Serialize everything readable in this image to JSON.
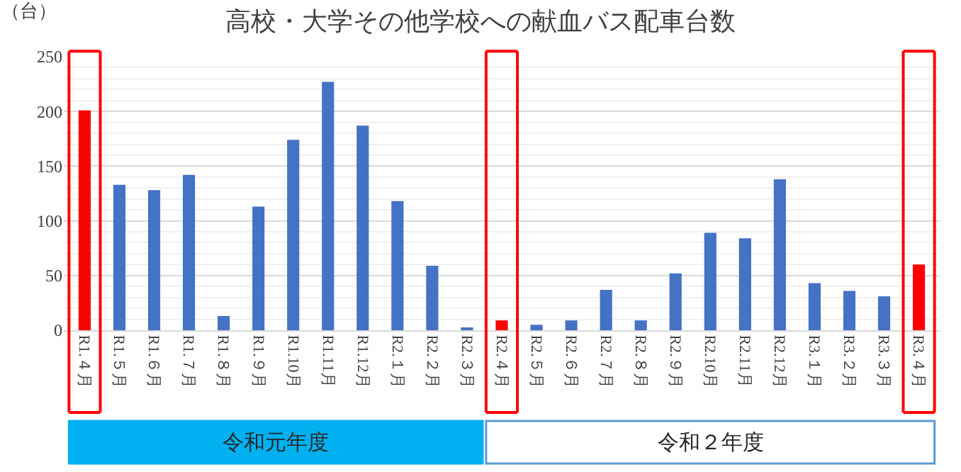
{
  "chart_data": {
    "type": "bar",
    "title": "高校・大学その他学校への献血バス配車台数",
    "ylabel": "（台）",
    "categories": [
      "R1.４月",
      "R1.５月",
      "R1.６月",
      "R1.７月",
      "R1.８月",
      "R1.９月",
      "R1.10月",
      "R1.11月",
      "R1.12月",
      "R2.１月",
      "R2.２月",
      "R2.３月",
      "R2.４月",
      "R2.５月",
      "R2.６月",
      "R2.７月",
      "R2.８月",
      "R2.９月",
      "R2.10月",
      "R2.11月",
      "R2.12月",
      "R3.１月",
      "R3.２月",
      "R3.３月",
      "R3.４月"
    ],
    "values": [
      201,
      133,
      128,
      142,
      13,
      113,
      174,
      227,
      187,
      118,
      59,
      2,
      9,
      5,
      9,
      37,
      9,
      52,
      89,
      84,
      138,
      43,
      36,
      31,
      60
    ],
    "colors": [
      "#ff0000",
      "#4472c4",
      "#4472c4",
      "#4472c4",
      "#4472c4",
      "#4472c4",
      "#4472c4",
      "#4472c4",
      "#4472c4",
      "#4472c4",
      "#4472c4",
      "#4472c4",
      "#ff0000",
      "#4472c4",
      "#4472c4",
      "#4472c4",
      "#4472c4",
      "#4472c4",
      "#4472c4",
      "#4472c4",
      "#4472c4",
      "#4472c4",
      "#4472c4",
      "#4472c4",
      "#ff0000"
    ],
    "ylim": [
      0,
      250
    ],
    "yticks": [
      0,
      50,
      100,
      150,
      200,
      250
    ],
    "grid": "y",
    "annotations": [
      "令和元年度",
      "令和２年度"
    ]
  }
}
